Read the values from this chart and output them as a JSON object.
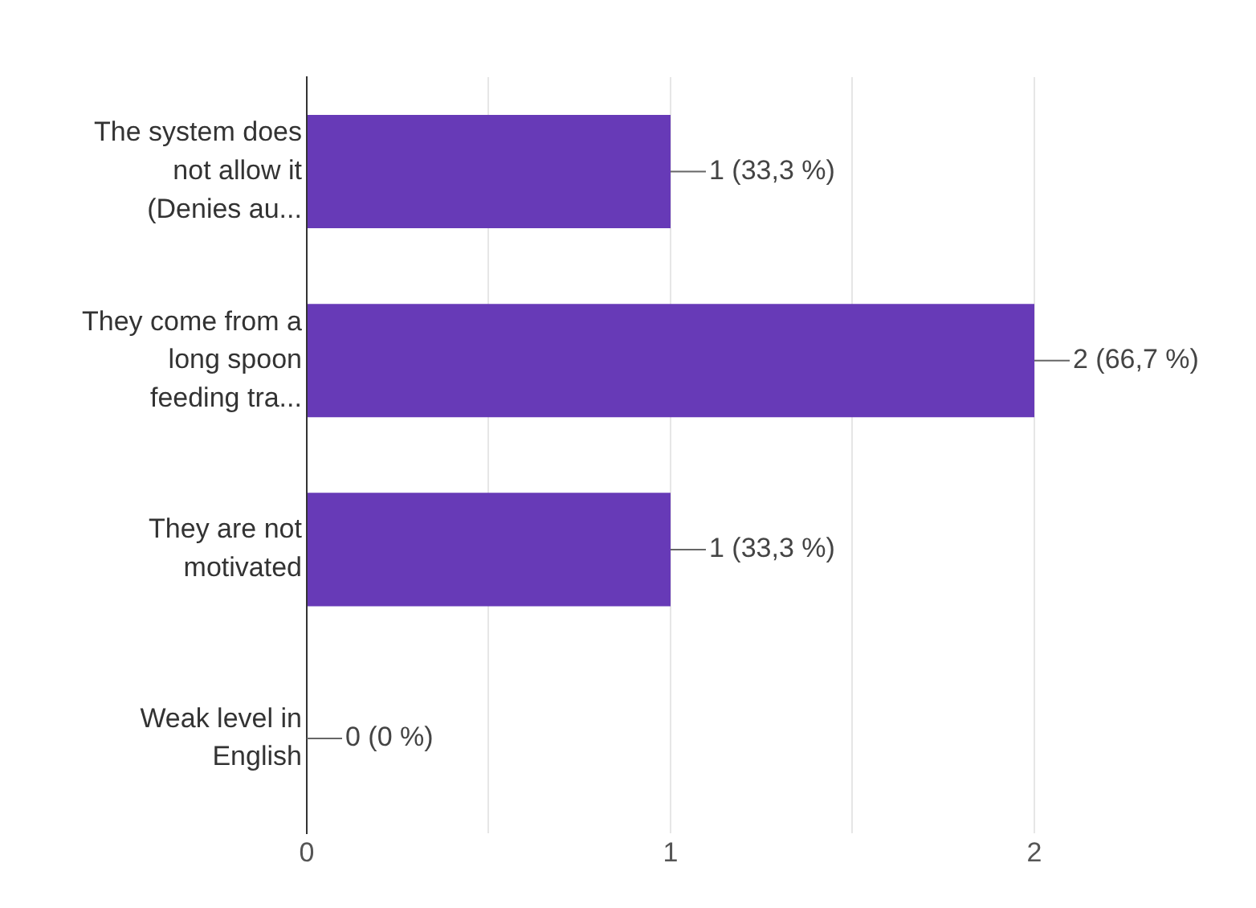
{
  "chart_data": {
    "type": "bar",
    "orientation": "horizontal",
    "categories": [
      "The system does not allow it (Denies au...",
      "They come from a long spoon feeding tra...",
      "They are not motivated",
      "Weak level in English"
    ],
    "values": [
      1,
      2,
      1,
      0
    ],
    "color": "#673ab7",
    "value_labels": [
      "1 (33,3 %)",
      "2 (66,7 %)",
      "1 (33,3 %)",
      "0 (0 %)"
    ],
    "xlim": [
      0,
      2
    ],
    "xticks": [
      0,
      {
        "value": 0.5,
        "label": null
      },
      1,
      {
        "value": 1.5,
        "label": null
      },
      2
    ],
    "grid": "x"
  }
}
